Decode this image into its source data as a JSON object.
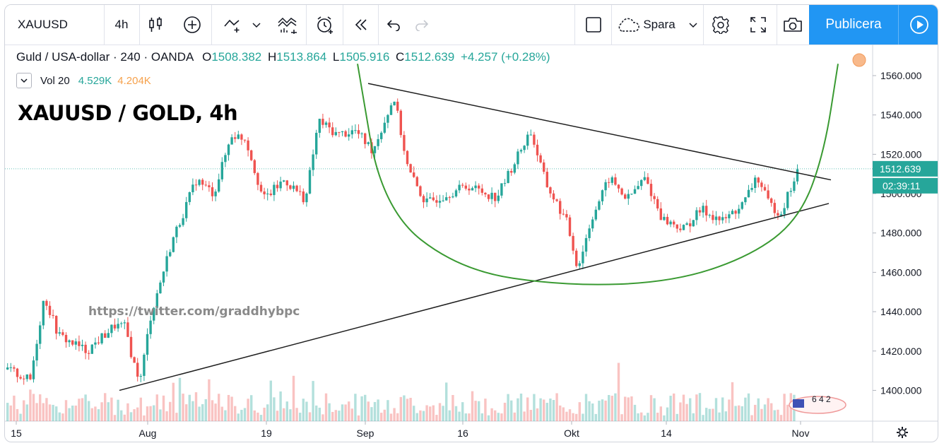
{
  "toolbar": {
    "symbol": "XAUUSD",
    "interval": "4h",
    "save_label": "Spara",
    "publish_label": "Publicera",
    "icons": [
      "bar-type-icon",
      "add-indicator-icon",
      "indicators-icon",
      "compare-icon",
      "alert-icon",
      "replay-icon",
      "undo-icon",
      "redo-icon",
      "layout-square-icon",
      "cloud-icon",
      "chevron-down-icon",
      "gear-icon",
      "fullscreen-icon",
      "camera-icon",
      "play-icon"
    ]
  },
  "legend": {
    "title": "Guld / USA-dollar · 240 · OANDA",
    "open_label": "O",
    "open": "1508.382",
    "high_label": "H",
    "high": "1513.864",
    "low_label": "L",
    "low": "1505.916",
    "close_label": "C",
    "close": "1512.639",
    "change": "+4.257 (+0.28%)",
    "vol_label": "Vol 20",
    "vol_value": "4.529K",
    "vol_ma": "4.204K"
  },
  "annotation": "XAUUSD / GOLD, 4h",
  "watermark": "https://twitter.com/graddhybpc",
  "price_tag": "1512.639",
  "countdown": "02:39:11",
  "badge_text": "6 4 2",
  "colors": {
    "up": "#26a69a",
    "down": "#ef5350",
    "accent": "#2196f3",
    "cup": "#3a9a32",
    "trendline": "#1e1e1e"
  },
  "chart_data": {
    "type": "candlestick",
    "y_ticks": [
      "1400.000",
      "1420.000",
      "1440.000",
      "1460.000",
      "1480.000",
      "1500.000",
      "1520.000",
      "1540.000",
      "1560.000"
    ],
    "x_ticks": [
      "15",
      "Aug",
      "19",
      "Sep",
      "16",
      "Okt",
      "14",
      "Nov"
    ],
    "ylim": [
      1385,
      1570
    ],
    "grid": false,
    "price_anchors": [
      {
        "t": 0,
        "p": 1412
      },
      {
        "t": 40,
        "p": 1405
      },
      {
        "t": 60,
        "p": 1448
      },
      {
        "t": 80,
        "p": 1428
      },
      {
        "t": 120,
        "p": 1420
      },
      {
        "t": 160,
        "p": 1433
      },
      {
        "t": 175,
        "p": 1432
      },
      {
        "t": 186,
        "p": 1414
      },
      {
        "t": 196,
        "p": 1405
      },
      {
        "t": 210,
        "p": 1437
      },
      {
        "t": 240,
        "p": 1475
      },
      {
        "t": 275,
        "p": 1507
      },
      {
        "t": 300,
        "p": 1500
      },
      {
        "t": 325,
        "p": 1530
      },
      {
        "t": 345,
        "p": 1528
      },
      {
        "t": 370,
        "p": 1497
      },
      {
        "t": 400,
        "p": 1507
      },
      {
        "t": 430,
        "p": 1497
      },
      {
        "t": 448,
        "p": 1537
      },
      {
        "t": 475,
        "p": 1530
      },
      {
        "t": 500,
        "p": 1532
      },
      {
        "t": 525,
        "p": 1522
      },
      {
        "t": 555,
        "p": 1549
      },
      {
        "t": 575,
        "p": 1512
      },
      {
        "t": 600,
        "p": 1495
      },
      {
        "t": 630,
        "p": 1500
      },
      {
        "t": 660,
        "p": 1504
      },
      {
        "t": 700,
        "p": 1498
      },
      {
        "t": 748,
        "p": 1532
      },
      {
        "t": 770,
        "p": 1505
      },
      {
        "t": 800,
        "p": 1485
      },
      {
        "t": 815,
        "p": 1462
      },
      {
        "t": 835,
        "p": 1488
      },
      {
        "t": 860,
        "p": 1508
      },
      {
        "t": 885,
        "p": 1497
      },
      {
        "t": 910,
        "p": 1508
      },
      {
        "t": 935,
        "p": 1487
      },
      {
        "t": 965,
        "p": 1482
      },
      {
        "t": 990,
        "p": 1492
      },
      {
        "t": 1020,
        "p": 1486
      },
      {
        "t": 1050,
        "p": 1495
      },
      {
        "t": 1068,
        "p": 1509
      },
      {
        "t": 1085,
        "p": 1495
      },
      {
        "t": 1102,
        "p": 1490
      },
      {
        "t": 1128,
        "p": 1513
      }
    ],
    "trendlines": [
      {
        "name": "upper",
        "from": {
          "t": 520,
          "p": 1556
        },
        "to": {
          "t": 1175,
          "p": 1507
        }
      },
      {
        "name": "lower",
        "from": {
          "t": 168,
          "p": 1400
        },
        "to": {
          "t": 1172,
          "p": 1495
        }
      }
    ],
    "cup_curve": [
      {
        "t": 505,
        "p": 1566
      },
      {
        "t": 540,
        "p": 1492
      },
      {
        "t": 650,
        "p": 1461
      },
      {
        "t": 800,
        "p": 1453
      },
      {
        "t": 950,
        "p": 1455
      },
      {
        "t": 1060,
        "p": 1468
      },
      {
        "t": 1130,
        "p": 1487
      },
      {
        "t": 1165,
        "p": 1520
      },
      {
        "t": 1185,
        "p": 1566
      }
    ]
  }
}
